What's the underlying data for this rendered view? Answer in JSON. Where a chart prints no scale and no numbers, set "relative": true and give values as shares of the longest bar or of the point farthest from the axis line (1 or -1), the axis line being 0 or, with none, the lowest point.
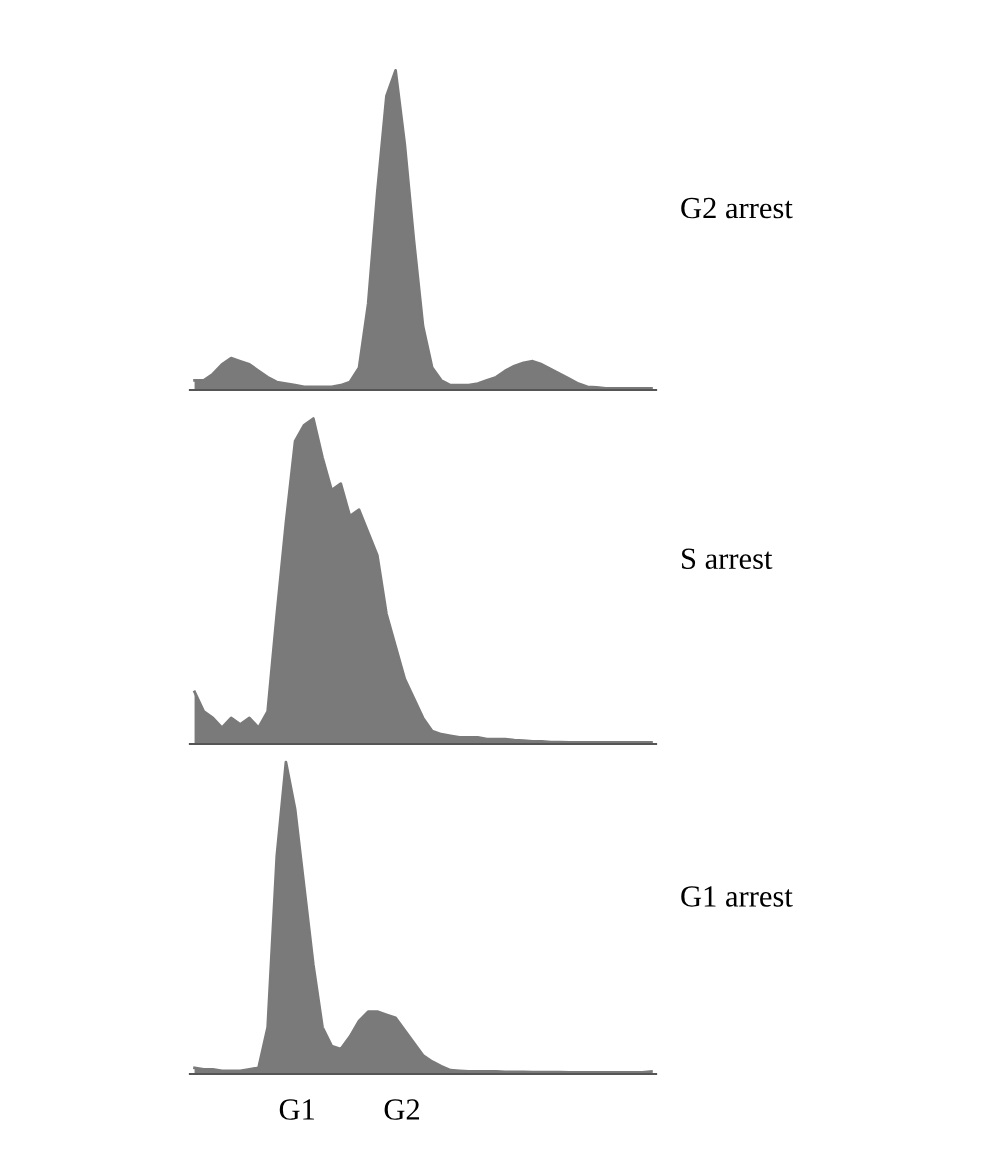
{
  "chart_data": [
    {
      "type": "area",
      "annotations": [
        "G2 arrest"
      ],
      "relative": true,
      "categories": [
        null,
        null,
        null,
        null,
        null,
        null,
        null,
        null,
        null,
        null,
        null,
        null,
        null,
        null,
        null,
        null,
        null,
        null,
        null,
        null,
        null,
        null,
        null,
        null,
        null,
        null,
        null,
        null,
        null,
        null,
        null,
        null,
        null,
        null,
        null,
        null,
        null,
        null,
        null,
        null,
        null,
        null,
        null,
        null,
        null,
        null,
        null,
        null,
        null,
        null,
        null
      ],
      "series": [
        {
          "color": "#7a7a7a",
          "values": [
            0.03,
            0.03,
            0.05,
            0.08,
            0.1,
            0.09,
            0.08,
            0.06,
            0.04,
            0.025,
            0.02,
            0.015,
            0.01,
            0.01,
            0.01,
            0.01,
            0.015,
            0.025,
            0.07,
            0.27,
            0.62,
            0.92,
            1.0,
            0.77,
            0.47,
            0.2,
            0.07,
            0.03,
            0.015,
            0.015,
            0.015,
            0.02,
            0.03,
            0.04,
            0.06,
            0.075,
            0.085,
            0.09,
            0.08,
            0.065,
            0.05,
            0.035,
            0.02,
            0.01,
            0.008,
            0.005,
            0.005,
            0.005,
            0.005,
            0.005,
            0.005
          ]
        }
      ]
    },
    {
      "type": "area",
      "annotations": [
        "S arrest"
      ],
      "relative": true,
      "categories": [
        null,
        null,
        null,
        null,
        null,
        null,
        null,
        null,
        null,
        null,
        null,
        null,
        null,
        null,
        null,
        null,
        null,
        null,
        null,
        null,
        null,
        null,
        null,
        null,
        null,
        null,
        null,
        null,
        null,
        null,
        null,
        null,
        null,
        null,
        null,
        null,
        null,
        null,
        null,
        null,
        null,
        null,
        null,
        null,
        null,
        null,
        null,
        null,
        null,
        null,
        null
      ],
      "series": [
        {
          "color": "#7a7a7a",
          "values": [
            0.16,
            0.1,
            0.08,
            0.05,
            0.08,
            0.06,
            0.08,
            0.05,
            0.1,
            0.4,
            0.68,
            0.93,
            0.98,
            1.0,
            0.88,
            0.78,
            0.8,
            0.7,
            0.72,
            0.65,
            0.58,
            0.4,
            0.3,
            0.2,
            0.14,
            0.08,
            0.04,
            0.03,
            0.025,
            0.02,
            0.02,
            0.02,
            0.015,
            0.015,
            0.015,
            0.012,
            0.01,
            0.008,
            0.008,
            0.006,
            0.006,
            0.005,
            0.005,
            0.005,
            0.005,
            0.005,
            0.005,
            0.005,
            0.005,
            0.005,
            0.005
          ]
        }
      ]
    },
    {
      "type": "area",
      "relative": true,
      "annotations": [
        "G1 arrest",
        "G1",
        "G2"
      ],
      "categories": [
        null,
        null,
        null,
        null,
        null,
        null,
        null,
        null,
        null,
        null,
        null,
        null,
        null,
        null,
        null,
        null,
        null,
        null,
        null,
        null,
        null,
        null,
        null,
        null,
        null,
        null,
        null,
        null,
        null,
        null,
        null,
        null,
        null,
        null,
        null,
        null,
        null,
        null,
        null,
        null,
        null,
        null,
        null,
        null,
        null,
        null,
        null,
        null,
        null,
        null,
        null
      ],
      "series": [
        {
          "color": "#7a7a7a",
          "values": [
            0.02,
            0.015,
            0.015,
            0.01,
            0.01,
            0.01,
            0.015,
            0.02,
            0.15,
            0.7,
            1.0,
            0.85,
            0.6,
            0.35,
            0.15,
            0.09,
            0.08,
            0.12,
            0.17,
            0.2,
            0.2,
            0.19,
            0.18,
            0.14,
            0.1,
            0.06,
            0.04,
            0.025,
            0.012,
            0.01,
            0.008,
            0.008,
            0.008,
            0.008,
            0.007,
            0.007,
            0.007,
            0.006,
            0.006,
            0.006,
            0.006,
            0.005,
            0.005,
            0.005,
            0.005,
            0.005,
            0.005,
            0.005,
            0.005,
            0.005,
            0.008
          ]
        }
      ]
    }
  ]
}
